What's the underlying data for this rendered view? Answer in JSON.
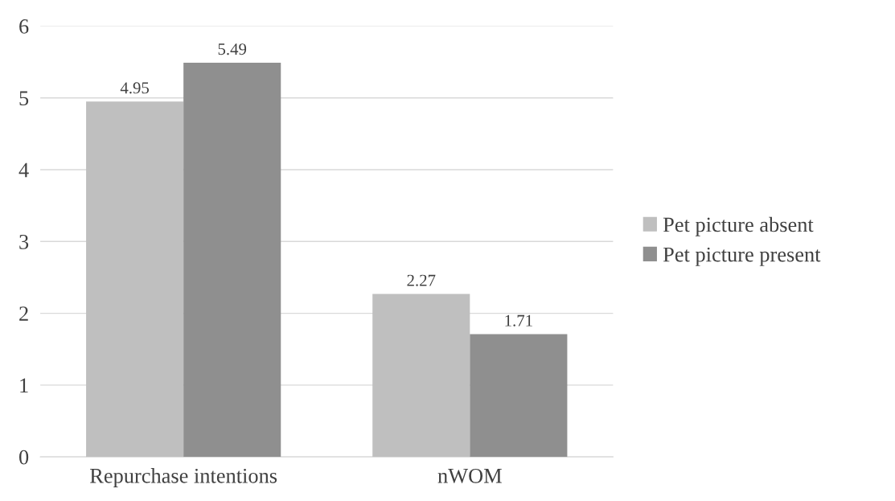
{
  "chart_data": {
    "type": "bar",
    "categories": [
      "Repurchase intentions",
      "nWOM"
    ],
    "series": [
      {
        "name": "Pet picture absent",
        "color": "#bfbfbf",
        "values": [
          4.95,
          2.27
        ]
      },
      {
        "name": "Pet picture present",
        "color": "#8f8f8f",
        "values": [
          5.49,
          1.71
        ]
      }
    ],
    "ylim": [
      0,
      6
    ],
    "yticks": [
      0,
      1,
      2,
      3,
      4,
      5,
      6
    ],
    "grid": "y",
    "legend": "right",
    "data_labels": true
  }
}
